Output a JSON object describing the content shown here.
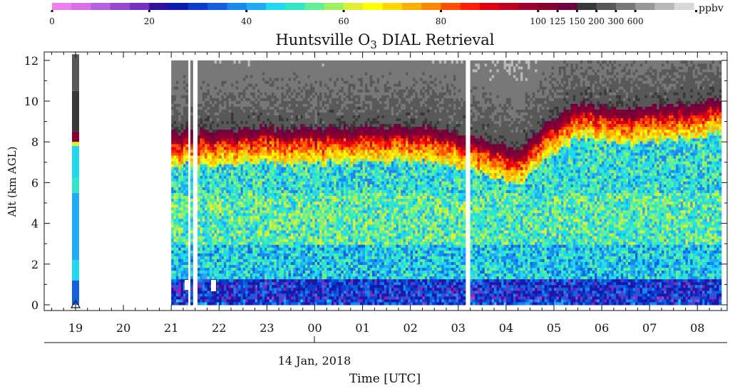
{
  "chart_data": {
    "type": "heatmap",
    "title": "Huntsville O",
    "title_subscript": "3",
    "title_suffix": " DIAL Retrieval",
    "xlabel": "Time [UTC]",
    "ylabel": "Alt (km AGL)",
    "date_label": "14 Jan, 2018",
    "x_ticks": [
      "19",
      "20",
      "21",
      "22",
      "23",
      "00",
      "01",
      "02",
      "03",
      "04",
      "05",
      "06",
      "07",
      "08"
    ],
    "y_ticks": [
      "0",
      "2",
      "4",
      "6",
      "8",
      "10",
      "12"
    ],
    "ylim": [
      0,
      12.3
    ],
    "colorbar": {
      "unit": "ppbv",
      "tick_labels": [
        "0",
        "20",
        "40",
        "60",
        "80",
        "100",
        "125",
        "150",
        "200",
        "300",
        "600"
      ],
      "colors": [
        "#f080f0",
        "#d870e8",
        "#b860e0",
        "#9848d0",
        "#7830c0",
        "#3010a0",
        "#0a1cb0",
        "#0a3cd0",
        "#1060e0",
        "#1888ee",
        "#20aaf8",
        "#20d8f0",
        "#30e8c8",
        "#60f098",
        "#a0f060",
        "#e0f030",
        "#ffff00",
        "#ffd800",
        "#ffb000",
        "#ff8800",
        "#ff5000",
        "#ff1c00",
        "#e00010",
        "#c00020",
        "#a00030",
        "#880030",
        "#700040",
        "#383838",
        "#585858",
        "#787878",
        "#989898",
        "#b8b8b8",
        "#d8d8d8"
      ],
      "tick_positions_index": [
        0,
        5,
        10,
        15,
        20,
        25,
        26,
        27,
        28,
        29,
        30
      ]
    },
    "profile_summary": {
      "x_hours_start": 21.0,
      "x_hours_end": 32.5,
      "tropopause_km": [
        {
          "t": 21.0,
          "km": 8.0
        },
        {
          "t": 23.0,
          "km": 8.2
        },
        {
          "t": 26.5,
          "km": 8.2
        },
        {
          "t": 27.5,
          "km": 7.6
        },
        {
          "t": 28.3,
          "km": 7.2
        },
        {
          "t": 28.8,
          "km": 8.3
        },
        {
          "t": 29.5,
          "km": 9.4
        },
        {
          "t": 30.5,
          "km": 9.1
        },
        {
          "t": 32.5,
          "km": 9.6
        }
      ],
      "layers": [
        {
          "from_km": 0.0,
          "to_km": 0.4,
          "ppbv": 25
        },
        {
          "from_km": 0.4,
          "to_km": 1.3,
          "ppbv": 28
        },
        {
          "from_km": 1.3,
          "to_km": 3.0,
          "ppbv": 45
        },
        {
          "from_km": 3.0,
          "to_km": 5.5,
          "ppbv": 52
        },
        {
          "from_km": 5.5,
          "to_km": 7.5,
          "ppbv": 48
        }
      ],
      "gaps_hours": [
        21.38,
        21.5,
        27.2
      ]
    },
    "ozonesonde_column": {
      "time_hour": 19.0,
      "profile_ppbv": [
        {
          "from_km": 0.0,
          "to_km": 1.2,
          "ppbv": 32
        },
        {
          "from_km": 1.2,
          "to_km": 2.2,
          "ppbv": 45
        },
        {
          "from_km": 2.2,
          "to_km": 5.5,
          "ppbv": 40
        },
        {
          "from_km": 5.5,
          "to_km": 6.2,
          "ppbv": 50
        },
        {
          "from_km": 6.2,
          "to_km": 7.8,
          "ppbv": 44
        },
        {
          "from_km": 7.8,
          "to_km": 8.0,
          "ppbv": 60
        },
        {
          "from_km": 8.0,
          "to_km": 8.5,
          "ppbv": 100
        },
        {
          "from_km": 8.5,
          "to_km": 10.5,
          "ppbv": 150
        },
        {
          "from_km": 10.5,
          "to_km": 12.3,
          "ppbv": 200
        }
      ]
    }
  }
}
